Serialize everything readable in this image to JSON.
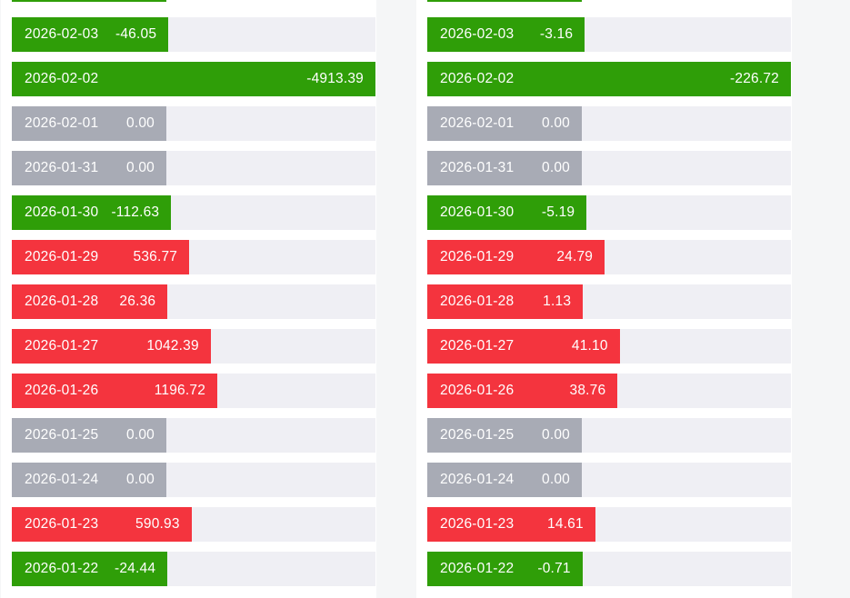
{
  "page": {
    "background": "#f5f6f7",
    "card_background": "#ffffff"
  },
  "colors": {
    "negative_bar": "#2f9e08",
    "positive_bar": "#f4343e",
    "zero_bar": "#a8abb5",
    "row_track": "#efeff4",
    "bar_text": "#ffffff"
  },
  "chart_data": [
    {
      "type": "bar",
      "orientation": "horizontal",
      "legend": "none",
      "axes": "hidden",
      "color_rule": {
        "negative": "green",
        "positive": "red",
        "zero": "gray"
      },
      "max_abs_value": 4913.39,
      "top_partial_bar": true,
      "rows": [
        {
          "date": "2026-02-03",
          "value": -46.05,
          "display": "-46.05"
        },
        {
          "date": "2026-02-02",
          "value": -4913.39,
          "display": "-4913.39"
        },
        {
          "date": "2026-02-01",
          "value": 0,
          "display": "0.00"
        },
        {
          "date": "2026-01-31",
          "value": 0,
          "display": "0.00"
        },
        {
          "date": "2026-01-30",
          "value": -112.63,
          "display": "-112.63"
        },
        {
          "date": "2026-01-29",
          "value": 536.77,
          "display": "536.77"
        },
        {
          "date": "2026-01-28",
          "value": 26.36,
          "display": "26.36"
        },
        {
          "date": "2026-01-27",
          "value": 1042.39,
          "display": "1042.39"
        },
        {
          "date": "2026-01-26",
          "value": 1196.72,
          "display": "1196.72"
        },
        {
          "date": "2026-01-25",
          "value": 0,
          "display": "0.00"
        },
        {
          "date": "2026-01-24",
          "value": 0,
          "display": "0.00"
        },
        {
          "date": "2026-01-23",
          "value": 590.93,
          "display": "590.93"
        },
        {
          "date": "2026-01-22",
          "value": -24.44,
          "display": "-24.44"
        }
      ]
    },
    {
      "type": "bar",
      "orientation": "horizontal",
      "legend": "none",
      "axes": "hidden",
      "color_rule": {
        "negative": "green",
        "positive": "red",
        "zero": "gray"
      },
      "max_abs_value": 226.72,
      "top_partial_bar": true,
      "rows": [
        {
          "date": "2026-02-03",
          "value": -3.16,
          "display": "-3.16"
        },
        {
          "date": "2026-02-02",
          "value": -226.72,
          "display": "-226.72"
        },
        {
          "date": "2026-02-01",
          "value": 0,
          "display": "0.00"
        },
        {
          "date": "2026-01-31",
          "value": 0,
          "display": "0.00"
        },
        {
          "date": "2026-01-30",
          "value": -5.19,
          "display": "-5.19"
        },
        {
          "date": "2026-01-29",
          "value": 24.79,
          "display": "24.79"
        },
        {
          "date": "2026-01-28",
          "value": 1.13,
          "display": "1.13"
        },
        {
          "date": "2026-01-27",
          "value": 41.1,
          "display": "41.10"
        },
        {
          "date": "2026-01-26",
          "value": 38.76,
          "display": "38.76"
        },
        {
          "date": "2026-01-25",
          "value": 0,
          "display": "0.00"
        },
        {
          "date": "2026-01-24",
          "value": 0,
          "display": "0.00"
        },
        {
          "date": "2026-01-23",
          "value": 14.61,
          "display": "14.61"
        },
        {
          "date": "2026-01-22",
          "value": -0.71,
          "display": "-0.71"
        }
      ]
    }
  ]
}
